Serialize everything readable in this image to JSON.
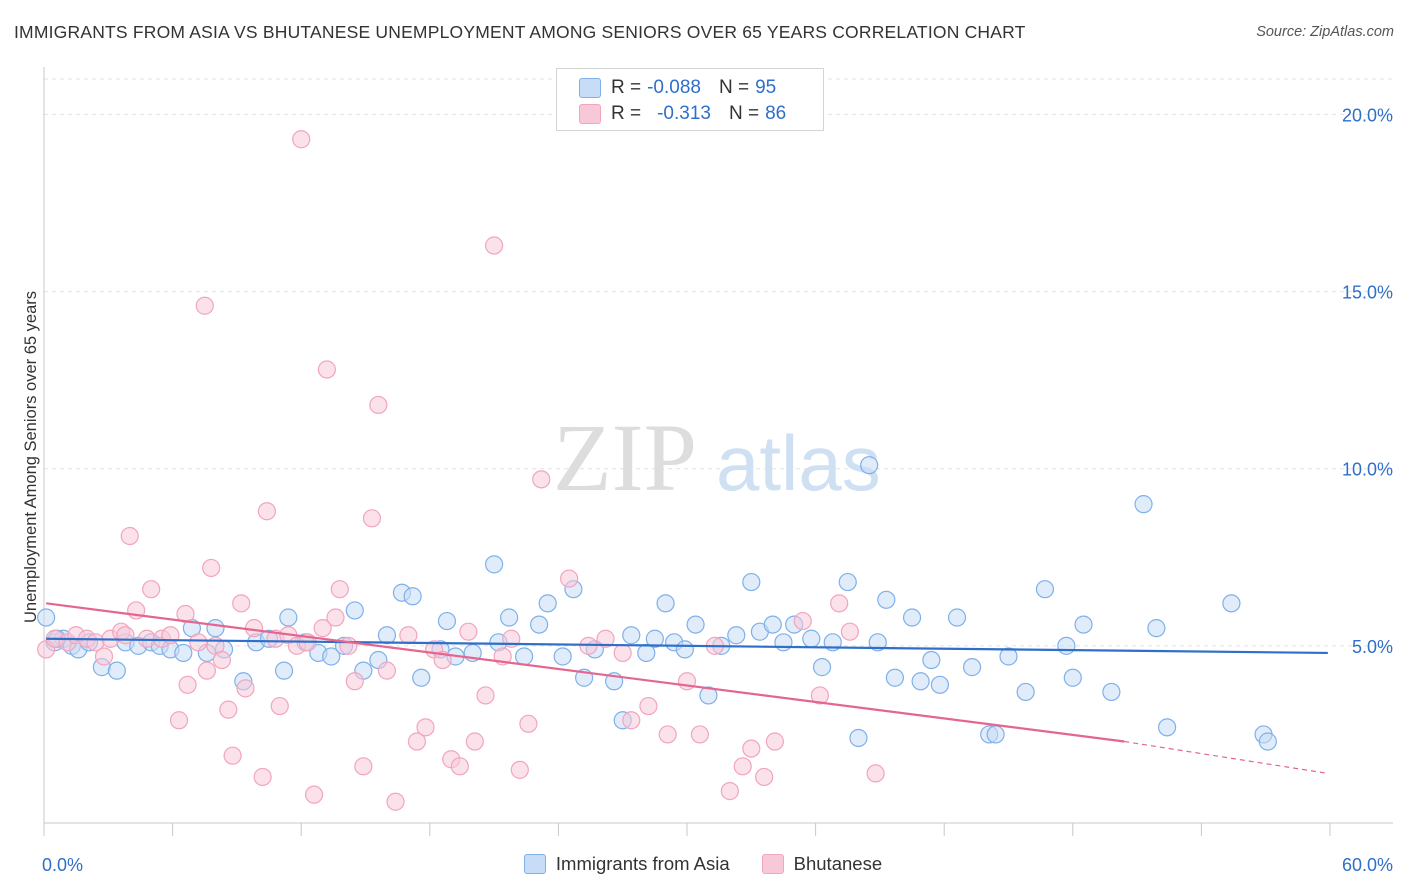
{
  "title": "IMMIGRANTS FROM ASIA VS BHUTANESE UNEMPLOYMENT AMONG SENIORS OVER 65 YEARS CORRELATION CHART",
  "source": "Source: ZipAtlas.com",
  "watermark": {
    "zip": "ZIP",
    "atlas": "atlas"
  },
  "legend": {
    "rows": [
      {
        "r_label": "R =",
        "r_value": "-0.088",
        "n_label": "N =",
        "n_value": "95"
      },
      {
        "r_label": "R =",
        "r_value": "-0.313",
        "n_label": "N =",
        "n_value": "86"
      }
    ]
  },
  "chart_data": {
    "type": "scatter",
    "ylabel": "Unemployment Among Seniors over 65 years",
    "xlim": [
      0,
      60
    ],
    "ylim": [
      0,
      21
    ],
    "x_tick_labels": [
      "0.0%",
      "60.0%"
    ],
    "y_ticks": [
      5,
      10,
      15,
      20
    ],
    "y_tick_labels": [
      "5.0%",
      "10.0%",
      "15.0%",
      "20.0%"
    ],
    "grid": "horizontal dashed",
    "legend_position": "top-center and bottom",
    "series": [
      {
        "name": "Immigrants from Asia",
        "color": "#7fb0ea",
        "fill": "#c7dcf6",
        "trend": {
          "x0": 0.1,
          "y0": 5.2,
          "x1": 59.9,
          "y1": 4.8
        },
        "points": [
          [
            0.1,
            5.8
          ],
          [
            0.5,
            5.1
          ],
          [
            0.9,
            5.2
          ],
          [
            1.3,
            5.0
          ],
          [
            1.6,
            4.9
          ],
          [
            2.1,
            5.1
          ],
          [
            2.7,
            4.4
          ],
          [
            3.4,
            4.3
          ],
          [
            3.8,
            5.1
          ],
          [
            4.4,
            5.0
          ],
          [
            5.0,
            5.1
          ],
          [
            5.4,
            5.0
          ],
          [
            5.9,
            4.9
          ],
          [
            6.5,
            4.8
          ],
          [
            6.9,
            5.5
          ],
          [
            7.6,
            4.8
          ],
          [
            8.0,
            5.5
          ],
          [
            8.4,
            4.9
          ],
          [
            9.3,
            4.0
          ],
          [
            9.9,
            5.1
          ],
          [
            10.5,
            5.2
          ],
          [
            11.2,
            4.3
          ],
          [
            11.4,
            5.8
          ],
          [
            12.2,
            5.1
          ],
          [
            12.8,
            4.8
          ],
          [
            13.4,
            4.7
          ],
          [
            14.0,
            5.0
          ],
          [
            14.5,
            6.0
          ],
          [
            14.9,
            4.3
          ],
          [
            15.6,
            4.6
          ],
          [
            16.0,
            5.3
          ],
          [
            16.7,
            6.5
          ],
          [
            17.2,
            6.4
          ],
          [
            17.6,
            4.1
          ],
          [
            18.5,
            4.9
          ],
          [
            18.8,
            5.7
          ],
          [
            19.2,
            4.7
          ],
          [
            20.0,
            4.8
          ],
          [
            21.0,
            7.3
          ],
          [
            21.2,
            5.1
          ],
          [
            21.7,
            5.8
          ],
          [
            22.4,
            4.7
          ],
          [
            23.1,
            5.6
          ],
          [
            23.5,
            6.2
          ],
          [
            24.2,
            4.7
          ],
          [
            24.7,
            6.6
          ],
          [
            25.2,
            4.1
          ],
          [
            25.7,
            4.9
          ],
          [
            26.6,
            4.0
          ],
          [
            27.0,
            2.9
          ],
          [
            27.4,
            5.3
          ],
          [
            28.1,
            4.8
          ],
          [
            28.5,
            5.2
          ],
          [
            29.0,
            6.2
          ],
          [
            29.4,
            5.1
          ],
          [
            29.9,
            4.9
          ],
          [
            30.4,
            5.6
          ],
          [
            31.0,
            3.6
          ],
          [
            31.6,
            5.0
          ],
          [
            32.3,
            5.3
          ],
          [
            33.0,
            6.8
          ],
          [
            33.4,
            5.4
          ],
          [
            34.0,
            5.6
          ],
          [
            34.5,
            5.1
          ],
          [
            35.0,
            5.6
          ],
          [
            35.8,
            5.2
          ],
          [
            36.3,
            4.4
          ],
          [
            36.8,
            5.1
          ],
          [
            37.5,
            6.8
          ],
          [
            38.0,
            2.4
          ],
          [
            38.5,
            10.1
          ],
          [
            38.9,
            5.1
          ],
          [
            39.3,
            6.3
          ],
          [
            39.7,
            4.1
          ],
          [
            40.5,
            5.8
          ],
          [
            40.9,
            4.0
          ],
          [
            41.4,
            4.6
          ],
          [
            41.8,
            3.9
          ],
          [
            42.6,
            5.8
          ],
          [
            43.3,
            4.4
          ],
          [
            44.1,
            2.5
          ],
          [
            44.4,
            2.5
          ],
          [
            45.0,
            4.7
          ],
          [
            45.8,
            3.7
          ],
          [
            46.7,
            6.6
          ],
          [
            47.7,
            5.0
          ],
          [
            48.0,
            4.1
          ],
          [
            48.5,
            5.6
          ],
          [
            49.8,
            3.7
          ],
          [
            51.3,
            9.0
          ],
          [
            51.9,
            5.5
          ],
          [
            52.4,
            2.7
          ],
          [
            55.4,
            6.2
          ],
          [
            56.9,
            2.5
          ],
          [
            57.1,
            2.3
          ],
          [
            0.6,
            5.2
          ]
        ]
      },
      {
        "name": "Bhutanese",
        "color": "#f2a5bd",
        "fill": "#f7c9d8",
        "trend": {
          "x0": 0.1,
          "y0": 6.2,
          "x1": 50.4,
          "y1": 2.3
        },
        "trend_extension": {
          "x0": 50.4,
          "y0": 2.3,
          "x1": 59.9,
          "y1": 1.4
        },
        "points": [
          [
            0.1,
            4.9
          ],
          [
            0.5,
            5.2
          ],
          [
            1.1,
            5.1
          ],
          [
            1.5,
            5.3
          ],
          [
            2.0,
            5.2
          ],
          [
            2.4,
            5.1
          ],
          [
            2.8,
            4.7
          ],
          [
            3.1,
            5.2
          ],
          [
            3.6,
            5.4
          ],
          [
            3.8,
            5.3
          ],
          [
            4.0,
            8.1
          ],
          [
            4.3,
            6.0
          ],
          [
            4.8,
            5.2
          ],
          [
            5.0,
            6.6
          ],
          [
            5.5,
            5.2
          ],
          [
            5.9,
            5.3
          ],
          [
            6.3,
            2.9
          ],
          [
            6.6,
            5.9
          ],
          [
            6.7,
            3.9
          ],
          [
            7.2,
            5.1
          ],
          [
            7.5,
            14.6
          ],
          [
            7.6,
            4.3
          ],
          [
            7.8,
            7.2
          ],
          [
            8.0,
            5.0
          ],
          [
            8.3,
            4.6
          ],
          [
            8.6,
            3.2
          ],
          [
            8.8,
            1.9
          ],
          [
            9.2,
            6.2
          ],
          [
            9.4,
            3.8
          ],
          [
            9.8,
            5.5
          ],
          [
            10.2,
            1.3
          ],
          [
            10.4,
            8.8
          ],
          [
            10.8,
            5.2
          ],
          [
            11.0,
            3.3
          ],
          [
            11.4,
            5.3
          ],
          [
            11.8,
            5.0
          ],
          [
            12.0,
            19.3
          ],
          [
            12.3,
            5.1
          ],
          [
            12.6,
            0.8
          ],
          [
            13.0,
            5.5
          ],
          [
            13.2,
            12.8
          ],
          [
            13.6,
            5.8
          ],
          [
            13.8,
            6.6
          ],
          [
            14.2,
            5.0
          ],
          [
            14.5,
            4.0
          ],
          [
            14.9,
            1.6
          ],
          [
            15.3,
            8.6
          ],
          [
            15.6,
            11.8
          ],
          [
            16.0,
            4.3
          ],
          [
            16.4,
            0.6
          ],
          [
            17.0,
            5.3
          ],
          [
            17.4,
            2.3
          ],
          [
            17.8,
            2.7
          ],
          [
            18.2,
            4.9
          ],
          [
            18.6,
            4.6
          ],
          [
            19.0,
            1.8
          ],
          [
            19.4,
            1.6
          ],
          [
            19.8,
            5.4
          ],
          [
            20.1,
            2.3
          ],
          [
            20.6,
            3.6
          ],
          [
            21.0,
            16.3
          ],
          [
            21.4,
            4.7
          ],
          [
            21.8,
            5.2
          ],
          [
            22.2,
            1.5
          ],
          [
            22.6,
            2.8
          ],
          [
            23.2,
            9.7
          ],
          [
            24.5,
            6.9
          ],
          [
            25.4,
            5.0
          ],
          [
            26.2,
            5.2
          ],
          [
            27.0,
            4.8
          ],
          [
            27.4,
            2.9
          ],
          [
            28.2,
            3.3
          ],
          [
            29.1,
            2.5
          ],
          [
            30.0,
            4.0
          ],
          [
            30.6,
            2.5
          ],
          [
            31.3,
            5.0
          ],
          [
            32.0,
            0.9
          ],
          [
            32.6,
            1.6
          ],
          [
            33.0,
            2.1
          ],
          [
            33.6,
            1.3
          ],
          [
            34.1,
            2.3
          ],
          [
            35.4,
            5.7
          ],
          [
            36.2,
            3.6
          ],
          [
            37.1,
            6.2
          ],
          [
            37.6,
            5.4
          ],
          [
            38.8,
            1.4
          ]
        ]
      }
    ]
  }
}
